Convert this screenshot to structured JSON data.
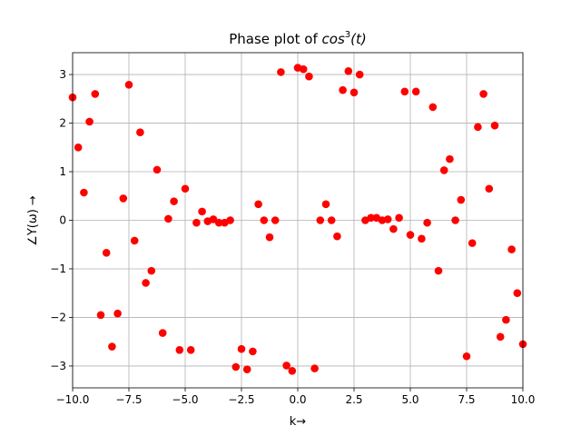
{
  "chart_data": {
    "type": "scatter",
    "title_prefix": "Phase plot of ",
    "title_math_base": "cos",
    "title_math_sup": "3",
    "title_math_arg": "(t)",
    "xlabel": "k→",
    "ylabel": "∠Y(ω) →",
    "xlim": [
      -10,
      10
    ],
    "ylim": [
      -3.45,
      3.45
    ],
    "x_ticks": [
      -10,
      -7.5,
      -5,
      -2.5,
      0,
      2.5,
      5,
      7.5,
      10
    ],
    "x_tick_labels": [
      "−10.0",
      "−7.5",
      "−5.0",
      "−2.5",
      "0.0",
      "2.5",
      "5.0",
      "7.5",
      "10.0"
    ],
    "y_ticks": [
      -3,
      -2,
      -1,
      0,
      1,
      2,
      3
    ],
    "y_tick_labels": [
      "−3",
      "−2",
      "−1",
      "0",
      "1",
      "2",
      "3"
    ],
    "grid": true,
    "marker_color": "#ff0000",
    "series": [
      {
        "points": [
          [
            -10.0,
            2.53
          ],
          [
            -9.75,
            1.5
          ],
          [
            -9.5,
            0.57
          ],
          [
            -9.25,
            2.03
          ],
          [
            -9.0,
            2.6
          ],
          [
            -8.75,
            -1.95
          ],
          [
            -8.5,
            -0.67
          ],
          [
            -8.25,
            -2.6
          ],
          [
            -8.0,
            -1.92
          ],
          [
            -7.75,
            0.45
          ],
          [
            -7.5,
            2.79
          ],
          [
            -7.25,
            -0.42
          ],
          [
            -7.0,
            1.81
          ],
          [
            -6.75,
            -1.29
          ],
          [
            -6.5,
            -1.04
          ],
          [
            -6.25,
            1.04
          ],
          [
            -6.0,
            -2.32
          ],
          [
            -5.75,
            0.03
          ],
          [
            -5.5,
            0.39
          ],
          [
            -5.25,
            -2.67
          ],
          [
            -5.0,
            0.65
          ],
          [
            -4.75,
            -2.67
          ],
          [
            -4.5,
            -0.05
          ],
          [
            -4.25,
            0.18
          ],
          [
            -4.0,
            -0.02
          ],
          [
            -3.75,
            0.02
          ],
          [
            -3.5,
            -0.05
          ],
          [
            -3.25,
            -0.05
          ],
          [
            -3.0,
            0.0
          ],
          [
            -2.75,
            -3.02
          ],
          [
            -2.5,
            -2.65
          ],
          [
            -2.25,
            -3.07
          ],
          [
            -2.0,
            -2.7
          ],
          [
            -1.75,
            0.33
          ],
          [
            -1.5,
            0.0
          ],
          [
            -1.25,
            -0.35
          ],
          [
            -1.0,
            0.0
          ],
          [
            -0.75,
            3.05
          ],
          [
            -0.5,
            -2.99
          ],
          [
            -0.25,
            -3.1
          ],
          [
            0.0,
            3.14
          ],
          [
            0.25,
            3.11
          ],
          [
            0.5,
            2.96
          ],
          [
            0.75,
            -3.05
          ],
          [
            1.0,
            0.0
          ],
          [
            1.25,
            0.33
          ],
          [
            1.5,
            0.0
          ],
          [
            1.75,
            -0.33
          ],
          [
            2.0,
            2.68
          ],
          [
            2.25,
            3.07
          ],
          [
            2.5,
            2.63
          ],
          [
            2.75,
            3.0
          ],
          [
            3.0,
            0.0
          ],
          [
            3.25,
            0.05
          ],
          [
            3.5,
            0.05
          ],
          [
            3.75,
            0.0
          ],
          [
            4.0,
            0.02
          ],
          [
            4.25,
            -0.18
          ],
          [
            4.5,
            0.05
          ],
          [
            4.75,
            2.65
          ],
          [
            5.0,
            -0.3
          ],
          [
            5.25,
            2.65
          ],
          [
            5.5,
            -0.38
          ],
          [
            5.75,
            -0.05
          ],
          [
            6.0,
            2.33
          ],
          [
            6.25,
            -1.04
          ],
          [
            6.5,
            1.03
          ],
          [
            6.75,
            1.26
          ],
          [
            7.0,
            0.0
          ],
          [
            7.25,
            0.42
          ],
          [
            7.5,
            -2.8
          ],
          [
            7.75,
            -0.47
          ],
          [
            8.0,
            1.92
          ],
          [
            8.25,
            2.6
          ],
          [
            8.5,
            0.65
          ],
          [
            8.75,
            1.95
          ],
          [
            9.0,
            -2.4
          ],
          [
            9.25,
            -2.05
          ],
          [
            9.5,
            -0.6
          ],
          [
            9.75,
            -1.5
          ],
          [
            10.0,
            -2.55
          ]
        ]
      }
    ]
  }
}
